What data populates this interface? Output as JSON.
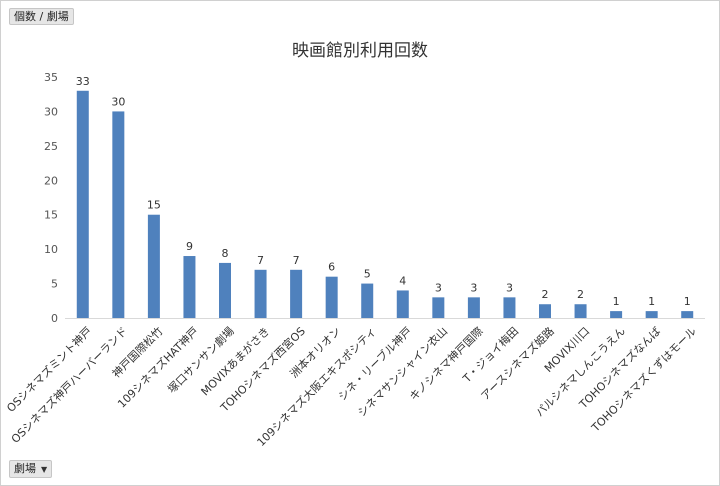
{
  "pivot": {
    "value_field": "個数 / 劇場",
    "axis_field": "劇場"
  },
  "chart_data": {
    "type": "bar",
    "title": "映画館別利用回数",
    "categories": [
      "OSシネマズミント神戸",
      "OSシネマズ神戸ハーバーランド",
      "神戸国際松竹",
      "109シネマズHAT神戸",
      "塚口サンサン劇場",
      "MOVIXあまがさき",
      "TOHOシネマズ西宮OS",
      "洲本オリオン",
      "109シネマズ大阪エキスポシティ",
      "シネ・リーブル神戸",
      "シネマサンシャイン衣山",
      "キノシネマ神戸国際",
      "T・ジョイ梅田",
      "アースシネマズ姫路",
      "MOVIX川口",
      "パルシネマしんこうえん",
      "TOHOシネマズなんば",
      "TOHOシネマズくずはモール"
    ],
    "values": [
      33,
      30,
      15,
      9,
      8,
      7,
      7,
      6,
      5,
      4,
      3,
      3,
      3,
      2,
      2,
      1,
      1,
      1
    ],
    "ylim": [
      0,
      35
    ],
    "yticks": [
      0,
      5,
      10,
      15,
      20,
      25,
      30,
      35
    ],
    "bar_color": "#4f81bd",
    "grid": false
  }
}
